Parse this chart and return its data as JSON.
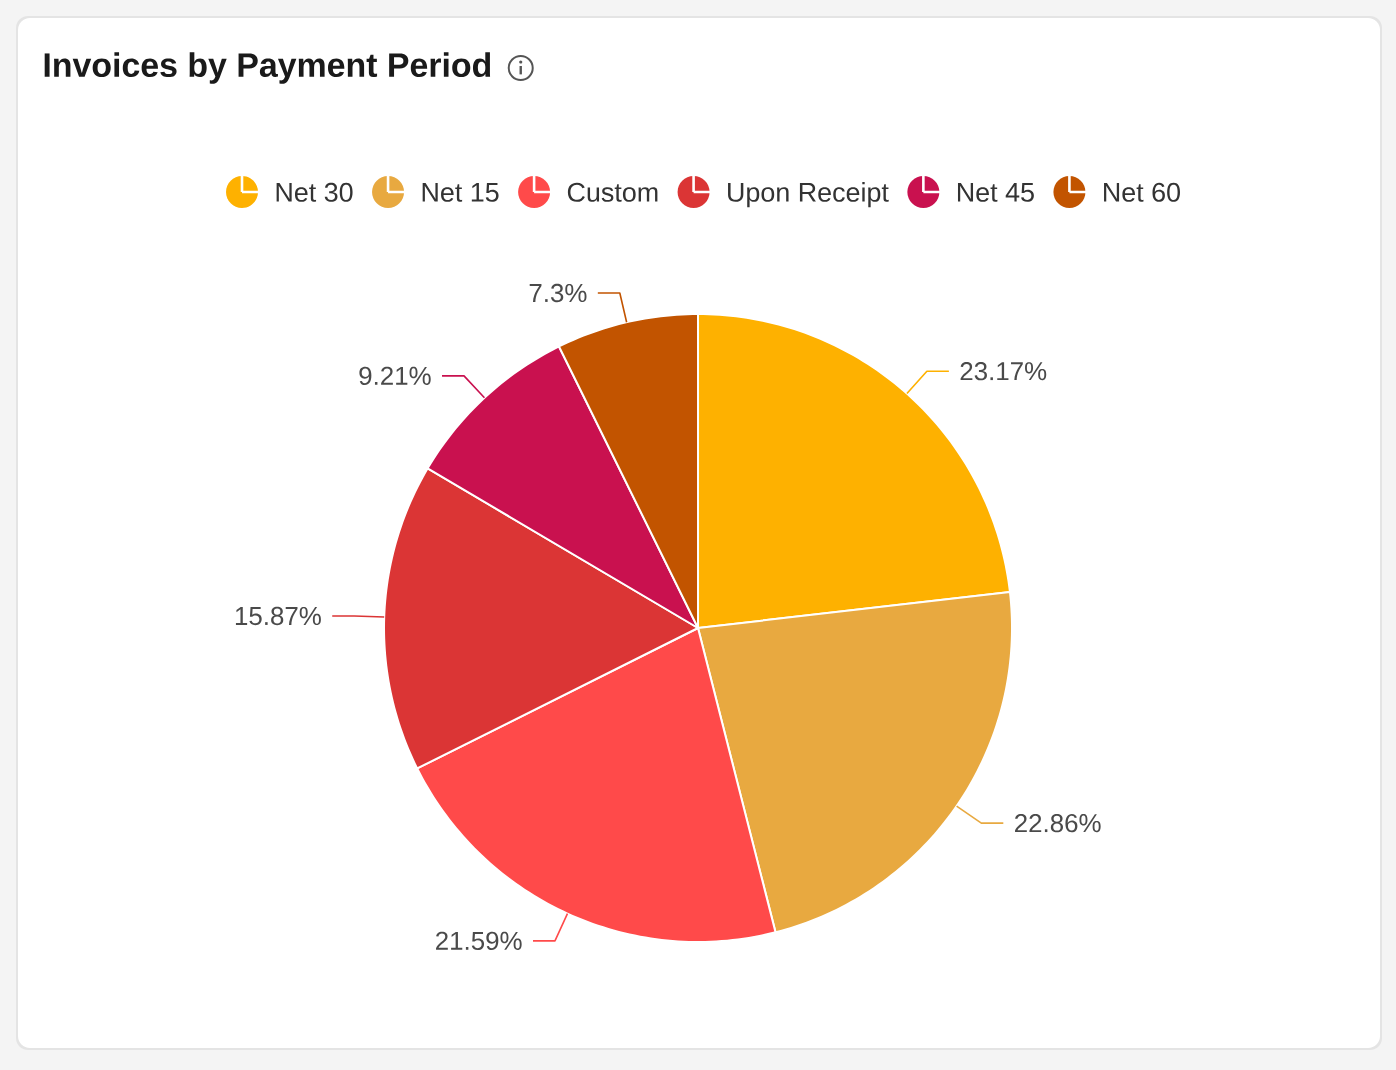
{
  "chart_data": {
    "type": "pie",
    "title": "Invoices by Payment Period",
    "categories": [
      "Net 30",
      "Net 15",
      "Custom",
      "Upon Receipt",
      "Net 45",
      "Net 60"
    ],
    "values": [
      23.17,
      22.86,
      21.59,
      15.87,
      9.21,
      7.3
    ],
    "colors": [
      "#feb100",
      "#e8a940",
      "#ff4a4a",
      "#db3535",
      "#c9114f",
      "#c25400"
    ],
    "value_labels": [
      "23.17%",
      "22.86%",
      "21.59%",
      "15.87%",
      "9.21%",
      "7.3%"
    ],
    "legend": "top"
  }
}
